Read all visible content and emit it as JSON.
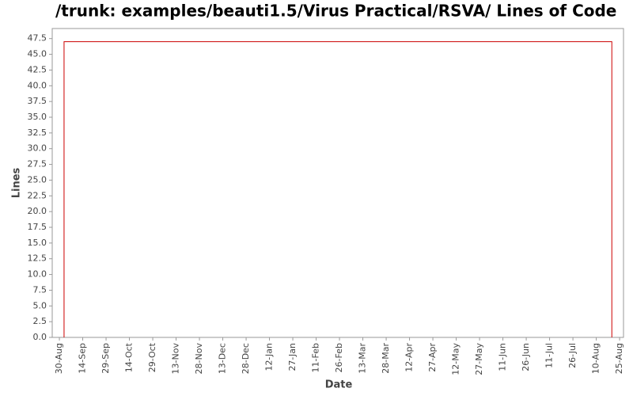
{
  "chart_data": {
    "type": "line",
    "title": "/trunk: examples/beauti1.5/Virus Practical/RSVA/ Lines of Code",
    "x_label": "Date",
    "y_label": "Lines",
    "x": [
      3,
      3,
      355,
      355
    ],
    "values": [
      0,
      47,
      47,
      0
    ],
    "color": "#cc0000",
    "xlim": [
      -4.6,
      362.5
    ],
    "xticks": [
      {
        "value": 0,
        "label": "30-Aug"
      },
      {
        "value": 15,
        "label": "14-Sep"
      },
      {
        "value": 30,
        "label": "29-Sep"
      },
      {
        "value": 45,
        "label": "14-Oct"
      },
      {
        "value": 60,
        "label": "29-Oct"
      },
      {
        "value": 75,
        "label": "13-Nov"
      },
      {
        "value": 90,
        "label": "28-Nov"
      },
      {
        "value": 105,
        "label": "13-Dec"
      },
      {
        "value": 120,
        "label": "28-Dec"
      },
      {
        "value": 135,
        "label": "12-Jan"
      },
      {
        "value": 150,
        "label": "27-Jan"
      },
      {
        "value": 165,
        "label": "11-Feb"
      },
      {
        "value": 180,
        "label": "26-Feb"
      },
      {
        "value": 195,
        "label": "13-Mar"
      },
      {
        "value": 210,
        "label": "28-Mar"
      },
      {
        "value": 225,
        "label": "12-Apr"
      },
      {
        "value": 240,
        "label": "27-Apr"
      },
      {
        "value": 255,
        "label": "12-May"
      },
      {
        "value": 270,
        "label": "27-May"
      },
      {
        "value": 285,
        "label": "11-Jun"
      },
      {
        "value": 300,
        "label": "26-Jun"
      },
      {
        "value": 315,
        "label": "11-Jul"
      },
      {
        "value": 330,
        "label": "26-Jul"
      },
      {
        "value": 345,
        "label": "10-Aug"
      },
      {
        "value": 360,
        "label": "25-Aug"
      }
    ],
    "ylim": [
      0,
      49.1
    ],
    "yticks": [
      {
        "value": 0,
        "label": "0.0"
      },
      2.5,
      {
        "value": 5,
        "label": "5.0"
      },
      7.5,
      {
        "value": 10,
        "label": "10.0"
      },
      12.5,
      {
        "value": 15,
        "label": "15.0"
      },
      17.5,
      {
        "value": 20,
        "label": "20.0"
      },
      22.5,
      {
        "value": 25,
        "label": "25.0"
      },
      27.5,
      {
        "value": 30,
        "label": "30.0"
      },
      32.5,
      {
        "value": 35,
        "label": "35.0"
      },
      37.5,
      {
        "value": 40,
        "label": "40.0"
      },
      42.5,
      {
        "value": 45,
        "label": "45.0"
      },
      47.5
    ]
  }
}
